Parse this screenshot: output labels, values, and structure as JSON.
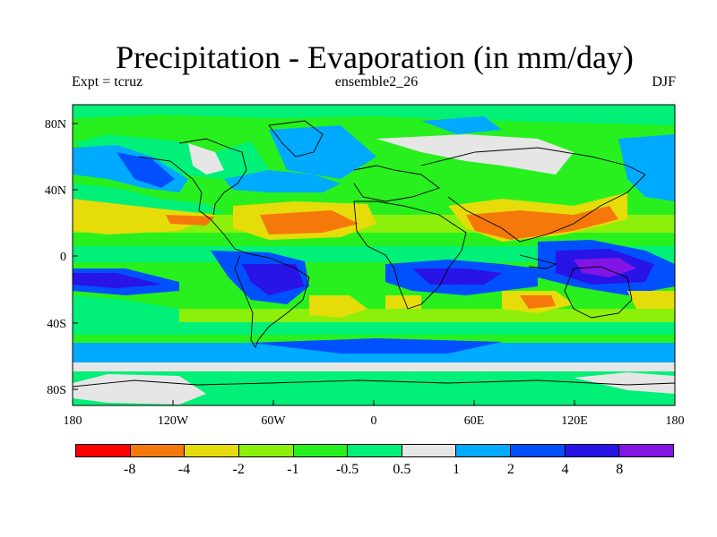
{
  "title": "Precipitation - Evaporation (in mm/day)",
  "experiment_label": "Expt = tcruz",
  "ensemble_label": "ensemble2_26",
  "season_label": "DJF",
  "lat_labels": [
    "80N",
    "40N",
    "0",
    "40S",
    "80S"
  ],
  "lon_labels": [
    "180",
    "120W",
    "60W",
    "0",
    "60E",
    "120E",
    "180"
  ],
  "colorbar": {
    "colors": [
      "#ff0000",
      "#f5790a",
      "#e6dc0a",
      "#8cf00a",
      "#28f01e",
      "#00f078",
      "#e6e6e6",
      "#00aaff",
      "#0050ff",
      "#2814e6",
      "#8214e6"
    ],
    "labels": [
      "-8",
      "-4",
      "-2",
      "-1",
      "-0.5",
      "0.5",
      "1",
      "2",
      "4",
      "8"
    ]
  }
}
